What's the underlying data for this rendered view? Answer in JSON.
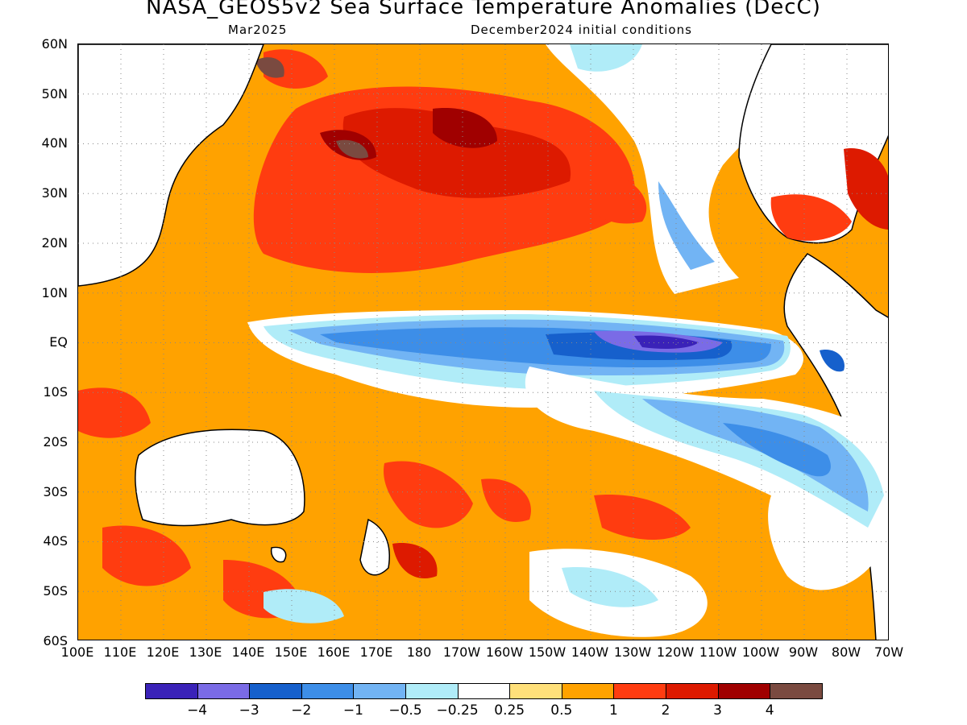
{
  "title": "NASA_GEOS5v2 Sea Surface Temperature Anomalies (DecC)",
  "subtitle_left": "Mar2025",
  "subtitle_right": "December2024 initial conditions",
  "lat_labels": [
    "60N",
    "50N",
    "40N",
    "30N",
    "20N",
    "10N",
    "EQ",
    "10S",
    "20S",
    "30S",
    "40S",
    "50S",
    "60S"
  ],
  "lon_labels": [
    "100E",
    "110E",
    "120E",
    "130E",
    "140E",
    "150E",
    "160E",
    "170E",
    "180",
    "170W",
    "160W",
    "150W",
    "140W",
    "130W",
    "120W",
    "110W",
    "100W",
    "90W",
    "80W",
    "70W"
  ],
  "colorbar": {
    "colors": [
      "#3a22b8",
      "#7a6be6",
      "#1660cc",
      "#3d8ee8",
      "#72b4f4",
      "#b0ecf8",
      "#ffffff",
      "#ffe07a",
      "#ffa200",
      "#ff3c10",
      "#dd1a00",
      "#a00000",
      "#7a4a40"
    ],
    "labels": [
      "-4",
      "-3",
      "-2",
      "-1",
      "-0.5",
      "-0.25",
      "0.25",
      "0.5",
      "1",
      "2",
      "3",
      "4"
    ]
  }
}
